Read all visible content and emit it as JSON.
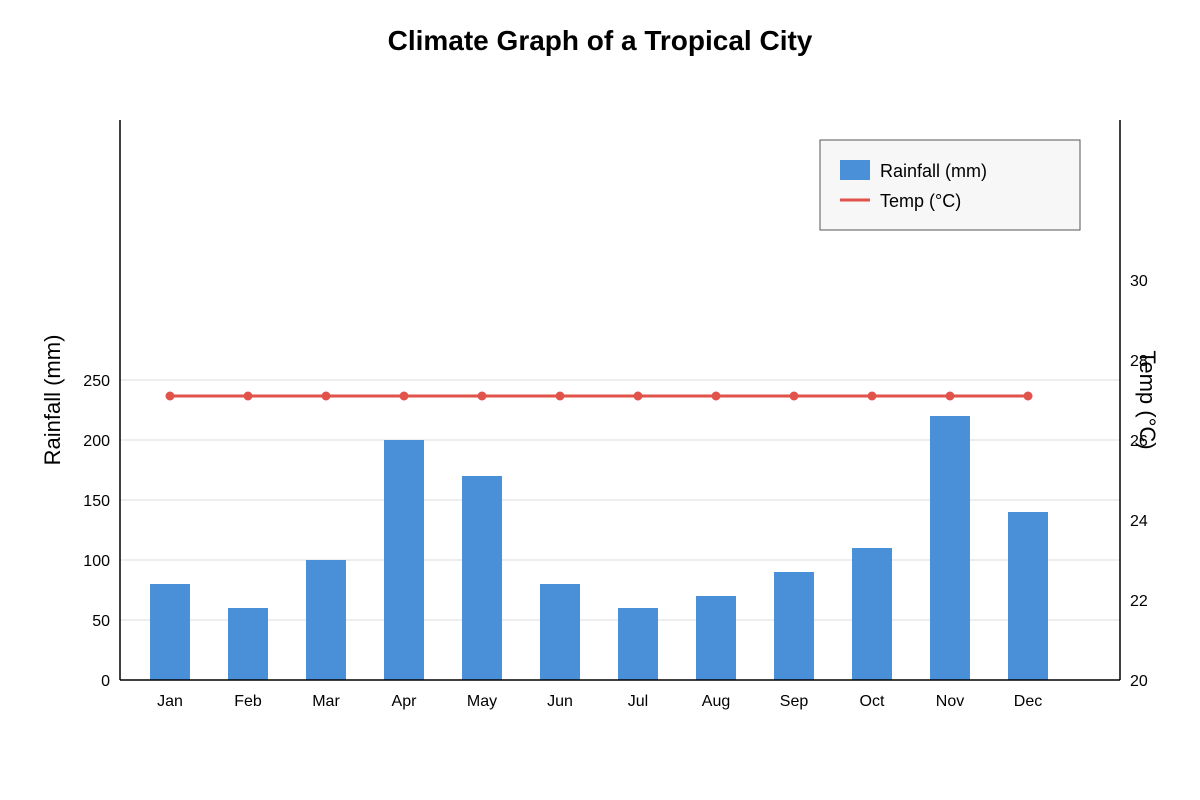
{
  "chart_data": {
    "type": "bar",
    "title": "Climate Graph of a Tropical City",
    "categories": [
      "Jan",
      "Feb",
      "Mar",
      "Apr",
      "May",
      "Jun",
      "Jul",
      "Aug",
      "Sep",
      "Oct",
      "Nov",
      "Dec"
    ],
    "series": [
      {
        "name": "Rainfall (mm)",
        "type": "bar",
        "axis": "left",
        "color": "#4a90d9",
        "values": [
          80,
          60,
          100,
          200,
          170,
          80,
          60,
          70,
          90,
          110,
          220,
          140
        ]
      },
      {
        "name": "Temp (°C)",
        "type": "line",
        "axis": "right",
        "color": "#e0524a",
        "values": [
          27.1,
          27.1,
          27.1,
          27.1,
          27.1,
          27.1,
          27.1,
          27.1,
          27.1,
          27.1,
          27.1,
          27.1
        ]
      }
    ],
    "y_left": {
      "label": "Rainfall (mm)",
      "ticks": [
        "0",
        "50",
        "100",
        "150",
        "200",
        "250"
      ],
      "ylim": [
        0,
        250
      ]
    },
    "y_right": {
      "label": "Temp (°C)",
      "ticks": [
        "20",
        "22",
        "24",
        "26",
        "28",
        "30"
      ],
      "ylim": [
        20,
        30
      ]
    },
    "grid": true,
    "legend": {
      "position": "top-right",
      "items": [
        "Rainfall (mm)",
        "Temp (°C)"
      ]
    }
  }
}
